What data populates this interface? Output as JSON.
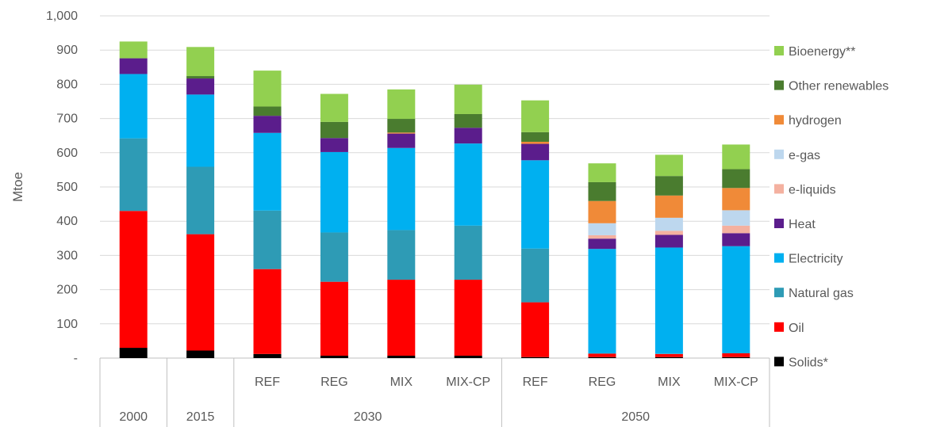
{
  "chart_data": {
    "type": "bar",
    "stacked": true,
    "ylabel": "Mtoe",
    "ylim": [
      0,
      1000
    ],
    "ytick_labels": [
      "-",
      "100",
      "200",
      "300",
      "400",
      "500",
      "600",
      "700",
      "800",
      "900",
      "1,000"
    ],
    "grid": true,
    "legend_position": "right",
    "categories": [
      "2000",
      "2015",
      "REF",
      "REG",
      "MIX",
      "MIX-CP",
      "REF",
      "REG",
      "MIX",
      "MIX-CP"
    ],
    "groups": [
      {
        "label": "2000",
        "members": [
          0
        ]
      },
      {
        "label": "2015",
        "members": [
          1
        ]
      },
      {
        "label": "2030",
        "members": [
          2,
          3,
          4,
          5
        ]
      },
      {
        "label": "2050",
        "members": [
          6,
          7,
          8,
          9
        ]
      }
    ],
    "series": [
      {
        "name": "Solids*",
        "color": "#000000",
        "values": [
          30,
          22,
          12,
          7,
          7,
          7,
          3,
          3,
          3,
          3
        ]
      },
      {
        "name": "Oil",
        "color": "#ff0000",
        "values": [
          400,
          340,
          248,
          216,
          222,
          222,
          160,
          10,
          9,
          11
        ]
      },
      {
        "name": "Natural gas",
        "color": "#2e9bb5",
        "values": [
          212,
          197,
          171,
          144,
          145,
          158,
          157,
          1,
          1,
          1
        ]
      },
      {
        "name": "Electricity",
        "color": "#00b0f0",
        "values": [
          188,
          211,
          227,
          235,
          240,
          240,
          258,
          305,
          310,
          312
        ]
      },
      {
        "name": "Heat",
        "color": "#5b1d8c",
        "values": [
          46,
          47,
          50,
          41,
          42,
          46,
          48,
          30,
          37,
          38
        ]
      },
      {
        "name": "e-liquids",
        "color": "#f4b1a0",
        "values": [
          0,
          0,
          0,
          0,
          0,
          0,
          0,
          10,
          12,
          22
        ]
      },
      {
        "name": "e-gas",
        "color": "#bdd7ee",
        "values": [
          0,
          0,
          0,
          0,
          0,
          0,
          0,
          35,
          38,
          45
        ]
      },
      {
        "name": "hydrogen",
        "color": "#f08a38",
        "values": [
          0,
          0,
          0,
          0,
          3,
          0,
          6,
          65,
          65,
          65
        ]
      },
      {
        "name": "Other renewables",
        "color": "#4a7c2f",
        "values": [
          0,
          7,
          27,
          47,
          40,
          40,
          28,
          55,
          57,
          55
        ]
      },
      {
        "name": "Bioenergy**",
        "color": "#92d050",
        "values": [
          49,
          85,
          105,
          82,
          86,
          86,
          93,
          55,
          62,
          72
        ]
      }
    ],
    "legend_order": [
      "Bioenergy**",
      "Other renewables",
      "hydrogen",
      "e-gas",
      "e-liquids",
      "Heat",
      "Electricity",
      "Natural gas",
      "Oil",
      "Solids*"
    ]
  }
}
